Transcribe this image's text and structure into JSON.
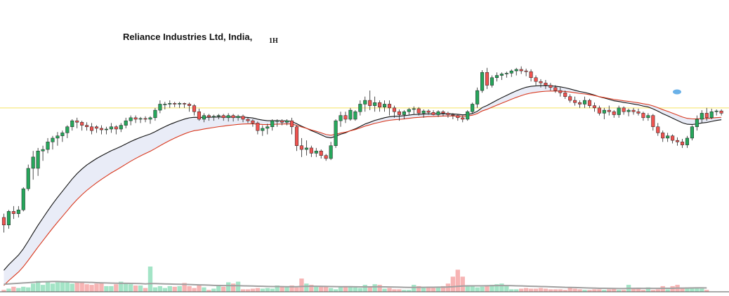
{
  "chart_data": {
    "type": "candlestick",
    "title": "Reliance Industries Ltd, India,",
    "interval": "1H",
    "grid": false,
    "legend": "none",
    "colors": {
      "up": "#26a65b",
      "down": "#ef5350",
      "up_volume": "#a3e4c6",
      "down_volume": "#f7b4b4",
      "ma_fast": "#111111",
      "ma_slow": "#d9381e",
      "band_fill": "#e9ecf7",
      "volume_ma": "#a0a0a0",
      "price_line": "#f5e463",
      "baseline": "#555555"
    },
    "price_range": [
      1125,
      1450
    ],
    "volume_range": [
      0,
      100
    ],
    "current_price_level": 1335,
    "candles": [
      [
        1190,
        1195,
        1170,
        1180
      ],
      [
        1180,
        1200,
        1175,
        1198
      ],
      [
        1198,
        1205,
        1188,
        1195
      ],
      [
        1195,
        1205,
        1190,
        1200
      ],
      [
        1200,
        1230,
        1198,
        1228
      ],
      [
        1228,
        1260,
        1225,
        1255
      ],
      [
        1255,
        1278,
        1240,
        1270
      ],
      [
        1255,
        1282,
        1245,
        1278
      ],
      [
        1278,
        1285,
        1265,
        1280
      ],
      [
        1280,
        1295,
        1275,
        1290
      ],
      [
        1290,
        1298,
        1280,
        1295
      ],
      [
        1295,
        1303,
        1285,
        1298
      ],
      [
        1298,
        1305,
        1290,
        1302
      ],
      [
        1302,
        1312,
        1295,
        1310
      ],
      [
        1310,
        1320,
        1305,
        1318
      ],
      [
        1318,
        1322,
        1308,
        1316
      ],
      [
        1316,
        1318,
        1305,
        1312
      ],
      [
        1312,
        1316,
        1305,
        1310
      ],
      [
        1310,
        1315,
        1300,
        1305
      ],
      [
        1310,
        1312,
        1302,
        1308
      ],
      [
        1308,
        1312,
        1300,
        1306
      ],
      [
        1306,
        1310,
        1300,
        1307
      ],
      [
        1307,
        1315,
        1302,
        1310
      ],
      [
        1310,
        1312,
        1300,
        1307
      ],
      [
        1307,
        1315,
        1303,
        1312
      ],
      [
        1312,
        1322,
        1308,
        1318
      ],
      [
        1318,
        1325,
        1312,
        1322
      ],
      [
        1322,
        1325,
        1315,
        1320
      ],
      [
        1320,
        1323,
        1315,
        1321
      ],
      [
        1321,
        1324,
        1316,
        1320
      ],
      [
        1320,
        1324,
        1314,
        1322
      ],
      [
        1322,
        1335,
        1318,
        1332
      ],
      [
        1332,
        1345,
        1328,
        1340
      ],
      [
        1340,
        1343,
        1333,
        1340
      ],
      [
        1340,
        1345,
        1335,
        1341
      ],
      [
        1341,
        1343,
        1336,
        1340
      ],
      [
        1340,
        1343,
        1335,
        1341
      ],
      [
        1341,
        1342,
        1335,
        1340
      ],
      [
        1340,
        1342,
        1330,
        1338
      ],
      [
        1338,
        1340,
        1325,
        1330
      ],
      [
        1330,
        1334,
        1318,
        1320
      ],
      [
        1320,
        1328,
        1316,
        1325
      ],
      [
        1325,
        1327,
        1318,
        1323
      ],
      [
        1323,
        1326,
        1318,
        1324
      ],
      [
        1324,
        1327,
        1320,
        1325
      ],
      [
        1325,
        1327,
        1318,
        1322
      ],
      [
        1322,
        1328,
        1317,
        1325
      ],
      [
        1325,
        1327,
        1317,
        1322
      ],
      [
        1322,
        1326,
        1318,
        1324
      ],
      [
        1324,
        1326,
        1316,
        1320
      ],
      [
        1320,
        1322,
        1315,
        1318
      ],
      [
        1318,
        1320,
        1310,
        1315
      ],
      [
        1315,
        1317,
        1300,
        1305
      ],
      [
        1305,
        1312,
        1298,
        1308
      ],
      [
        1308,
        1314,
        1300,
        1310
      ],
      [
        1310,
        1320,
        1305,
        1318
      ],
      [
        1318,
        1320,
        1310,
        1318
      ],
      [
        1318,
        1320,
        1312,
        1316
      ],
      [
        1316,
        1320,
        1312,
        1318
      ],
      [
        1318,
        1322,
        1300,
        1310
      ],
      [
        1310,
        1312,
        1278,
        1285
      ],
      [
        1285,
        1295,
        1270,
        1280
      ],
      [
        1280,
        1292,
        1272,
        1282
      ],
      [
        1282,
        1285,
        1270,
        1275
      ],
      [
        1275,
        1282,
        1270,
        1278
      ],
      [
        1278,
        1280,
        1268,
        1272
      ],
      [
        1272,
        1274,
        1265,
        1268
      ],
      [
        1268,
        1290,
        1266,
        1285
      ],
      [
        1285,
        1320,
        1282,
        1318
      ],
      [
        1318,
        1330,
        1310,
        1325
      ],
      [
        1325,
        1330,
        1315,
        1320
      ],
      [
        1320,
        1335,
        1318,
        1332
      ],
      [
        1320,
        1332,
        1318,
        1330
      ],
      [
        1330,
        1345,
        1325,
        1340
      ],
      [
        1340,
        1350,
        1330,
        1345
      ],
      [
        1345,
        1358,
        1332,
        1338
      ],
      [
        1338,
        1350,
        1330,
        1342
      ],
      [
        1342,
        1345,
        1330,
        1336
      ],
      [
        1336,
        1345,
        1330,
        1340
      ],
      [
        1340,
        1345,
        1325,
        1335
      ],
      [
        1335,
        1338,
        1322,
        1330
      ],
      [
        1330,
        1333,
        1318,
        1326
      ],
      [
        1326,
        1332,
        1320,
        1330
      ],
      [
        1330,
        1335,
        1326,
        1333
      ],
      [
        1333,
        1337,
        1327,
        1334
      ],
      [
        1334,
        1336,
        1325,
        1328
      ],
      [
        1328,
        1333,
        1322,
        1331
      ],
      [
        1331,
        1333,
        1326,
        1329
      ],
      [
        1329,
        1332,
        1325,
        1326
      ],
      [
        1326,
        1332,
        1323,
        1330
      ],
      [
        1330,
        1332,
        1324,
        1328
      ],
      [
        1328,
        1330,
        1322,
        1326
      ],
      [
        1326,
        1328,
        1320,
        1325
      ],
      [
        1325,
        1327,
        1318,
        1322
      ],
      [
        1322,
        1325,
        1316,
        1320
      ],
      [
        1320,
        1332,
        1318,
        1330
      ],
      [
        1330,
        1342,
        1328,
        1340
      ],
      [
        1340,
        1362,
        1335,
        1358
      ],
      [
        1358,
        1385,
        1355,
        1382
      ],
      [
        1382,
        1388,
        1360,
        1365
      ],
      [
        1365,
        1378,
        1362,
        1375
      ],
      [
        1375,
        1382,
        1370,
        1378
      ],
      [
        1378,
        1382,
        1372,
        1380
      ],
      [
        1380,
        1383,
        1375,
        1381
      ],
      [
        1381,
        1386,
        1376,
        1384
      ],
      [
        1384,
        1388,
        1378,
        1386
      ],
      [
        1386,
        1390,
        1380,
        1384
      ],
      [
        1384,
        1387,
        1377,
        1383
      ],
      [
        1383,
        1386,
        1370,
        1375
      ],
      [
        1375,
        1378,
        1365,
        1370
      ],
      [
        1370,
        1373,
        1362,
        1368
      ],
      [
        1368,
        1372,
        1360,
        1365
      ],
      [
        1365,
        1368,
        1358,
        1362
      ],
      [
        1362,
        1365,
        1355,
        1358
      ],
      [
        1358,
        1362,
        1350,
        1355
      ],
      [
        1355,
        1358,
        1347,
        1350
      ],
      [
        1350,
        1353,
        1342,
        1345
      ],
      [
        1345,
        1350,
        1338,
        1342
      ],
      [
        1342,
        1345,
        1335,
        1340
      ],
      [
        1340,
        1350,
        1335,
        1345
      ],
      [
        1345,
        1347,
        1335,
        1338
      ],
      [
        1338,
        1342,
        1330,
        1335
      ],
      [
        1335,
        1338,
        1325,
        1328
      ],
      [
        1328,
        1335,
        1320,
        1332
      ],
      [
        1332,
        1338,
        1325,
        1330
      ],
      [
        1330,
        1332,
        1322,
        1326
      ],
      [
        1326,
        1338,
        1322,
        1335
      ],
      [
        1335,
        1337,
        1326,
        1330
      ],
      [
        1330,
        1334,
        1324,
        1332
      ],
      [
        1332,
        1335,
        1326,
        1330
      ],
      [
        1330,
        1334,
        1325,
        1328
      ],
      [
        1328,
        1330,
        1318,
        1322
      ],
      [
        1322,
        1328,
        1318,
        1325
      ],
      [
        1325,
        1327,
        1305,
        1310
      ],
      [
        1310,
        1315,
        1298,
        1302
      ],
      [
        1302,
        1305,
        1290,
        1295
      ],
      [
        1295,
        1302,
        1290,
        1298
      ],
      [
        1298,
        1300,
        1288,
        1292
      ],
      [
        1292,
        1296,
        1285,
        1290
      ],
      [
        1290,
        1294,
        1282,
        1286
      ],
      [
        1286,
        1298,
        1282,
        1295
      ],
      [
        1295,
        1312,
        1292,
        1310
      ],
      [
        1310,
        1325,
        1305,
        1320
      ],
      [
        1320,
        1332,
        1315,
        1328
      ],
      [
        1328,
        1335,
        1318,
        1322
      ],
      [
        1322,
        1334,
        1320,
        1330
      ],
      [
        1330,
        1333,
        1325,
        1331
      ],
      [
        1331,
        1333,
        1325,
        1328
      ]
    ],
    "volumes": [
      3,
      5,
      8,
      6,
      8,
      7,
      13,
      17,
      11,
      15,
      13,
      15,
      16,
      16,
      13,
      16,
      16,
      12,
      11,
      13,
      15,
      9,
      9,
      12,
      16,
      13,
      12,
      10,
      10,
      6,
      40,
      7,
      9,
      6,
      9,
      8,
      9,
      14,
      9,
      6,
      10,
      7,
      3,
      5,
      11,
      8,
      15,
      13,
      16,
      4,
      4,
      5,
      6,
      5,
      6,
      5,
      10,
      8,
      8,
      10,
      7,
      21,
      13,
      11,
      8,
      8,
      8,
      6,
      4,
      8,
      9,
      9,
      7,
      6,
      11,
      9,
      12,
      11,
      5,
      6,
      4,
      4,
      3,
      3,
      11,
      9,
      6,
      8,
      6,
      8,
      9,
      13,
      24,
      35,
      24,
      10,
      9,
      7,
      8,
      9,
      11,
      12,
      13,
      9,
      4,
      4,
      5,
      6,
      5,
      5,
      6,
      5,
      4,
      4,
      4,
      3,
      7,
      5,
      4,
      3,
      3,
      4,
      4,
      3,
      4,
      5,
      3,
      3,
      11,
      5,
      5,
      3,
      7,
      3,
      4,
      9,
      4,
      9,
      11,
      5,
      6,
      7,
      6,
      5,
      3
    ],
    "volume_ma": [
      12,
      12.5,
      13,
      13.5,
      14,
      14.5,
      15,
      15.5,
      15.8,
      16,
      16.2,
      16.2,
      16,
      15.8,
      15.5,
      15.3,
      15.2,
      15,
      14.8,
      14.5,
      14.2,
      14,
      13.8,
      13.6,
      13.5,
      13.5,
      13.4,
      13.2,
      13,
      12.5,
      13,
      13,
      12.8,
      12.5,
      12.3,
      12.1,
      12,
      11.8,
      11.5,
      11.2,
      11,
      10.8,
      10.5,
      10.2,
      10,
      9.8,
      9.8,
      9.7,
      9.7,
      9.5,
      9.3,
      9.1,
      8.9,
      8.7,
      8.5,
      8.3,
      8.3,
      8.2,
      8.1,
      8.1,
      8,
      8.5,
      8.6,
      8.7,
      8.7,
      8.6,
      8.5,
      8.4,
      8.2,
      8.1,
      8,
      8,
      7.9,
      7.8,
      7.8,
      7.8,
      7.9,
      7.9,
      7.8,
      7.7,
      7.5,
      7.3,
      7.1,
      6.9,
      7,
      7.1,
      7.1,
      7.2,
      7.2,
      7.3,
      7.4,
      7.6,
      8,
      8.6,
      9.2,
      9.4,
      9.5,
      9.5,
      9.5,
      9.6,
      9.7,
      9.8,
      9.9,
      9.9,
      9.7,
      9.5,
      9.3,
      9,
      8.8,
      8.6,
      8.4,
      8.2,
      7.9,
      7.7,
      7.4,
      7.1,
      7,
      6.8,
      6.5,
      6.2,
      6,
      5.8,
      5.6,
      5.5,
      5.4,
      5.3,
      5.2,
      5.1,
      5.4,
      5.4,
      5.5,
      5.4,
      5.5,
      5.4,
      5.4,
      5.6,
      5.5,
      5.6,
      5.8,
      5.9,
      6,
      6.1,
      6.2,
      6.2,
      6.1
    ],
    "ma_fast": [],
    "ma_slow": []
  }
}
